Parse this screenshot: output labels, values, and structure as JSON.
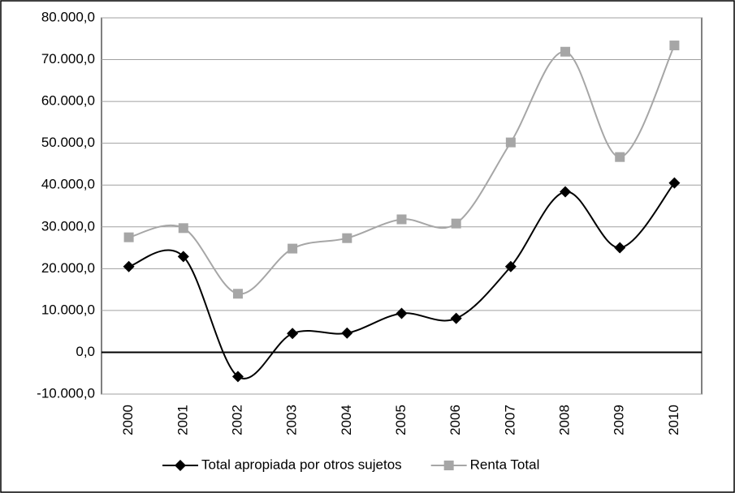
{
  "chart_data": {
    "type": "line",
    "categories": [
      "2000",
      "2001",
      "2002",
      "2003",
      "2004",
      "2005",
      "2006",
      "2007",
      "2008",
      "2009",
      "2010"
    ],
    "series": [
      {
        "name": "Total apropiada por otros sujetos",
        "color": "#000000",
        "marker": "diamond",
        "values": [
          20500,
          22900,
          -5800,
          4500,
          4600,
          9300,
          8100,
          20500,
          38400,
          25000,
          40500
        ]
      },
      {
        "name": "Renta Total",
        "color": "#a6a6a6",
        "marker": "square",
        "values": [
          27500,
          29700,
          14000,
          24800,
          27300,
          31800,
          30800,
          50200,
          71900,
          46700,
          73400
        ]
      }
    ],
    "ylim": [
      -10000,
      80000
    ],
    "yticks": [
      {
        "value": -10000,
        "label": "-10.000,0"
      },
      {
        "value": 0,
        "label": "0,0"
      },
      {
        "value": 10000,
        "label": "10.000,0"
      },
      {
        "value": 20000,
        "label": "20.000,0"
      },
      {
        "value": 30000,
        "label": "30.000,0"
      },
      {
        "value": 40000,
        "label": "40.000,0"
      },
      {
        "value": 50000,
        "label": "50.000,0"
      },
      {
        "value": 60000,
        "label": "60.000,0"
      },
      {
        "value": 70000,
        "label": "70.000,0"
      },
      {
        "value": 80000,
        "label": "80.000,0"
      }
    ],
    "grid": true,
    "smooth": true,
    "legend": "bottom"
  }
}
